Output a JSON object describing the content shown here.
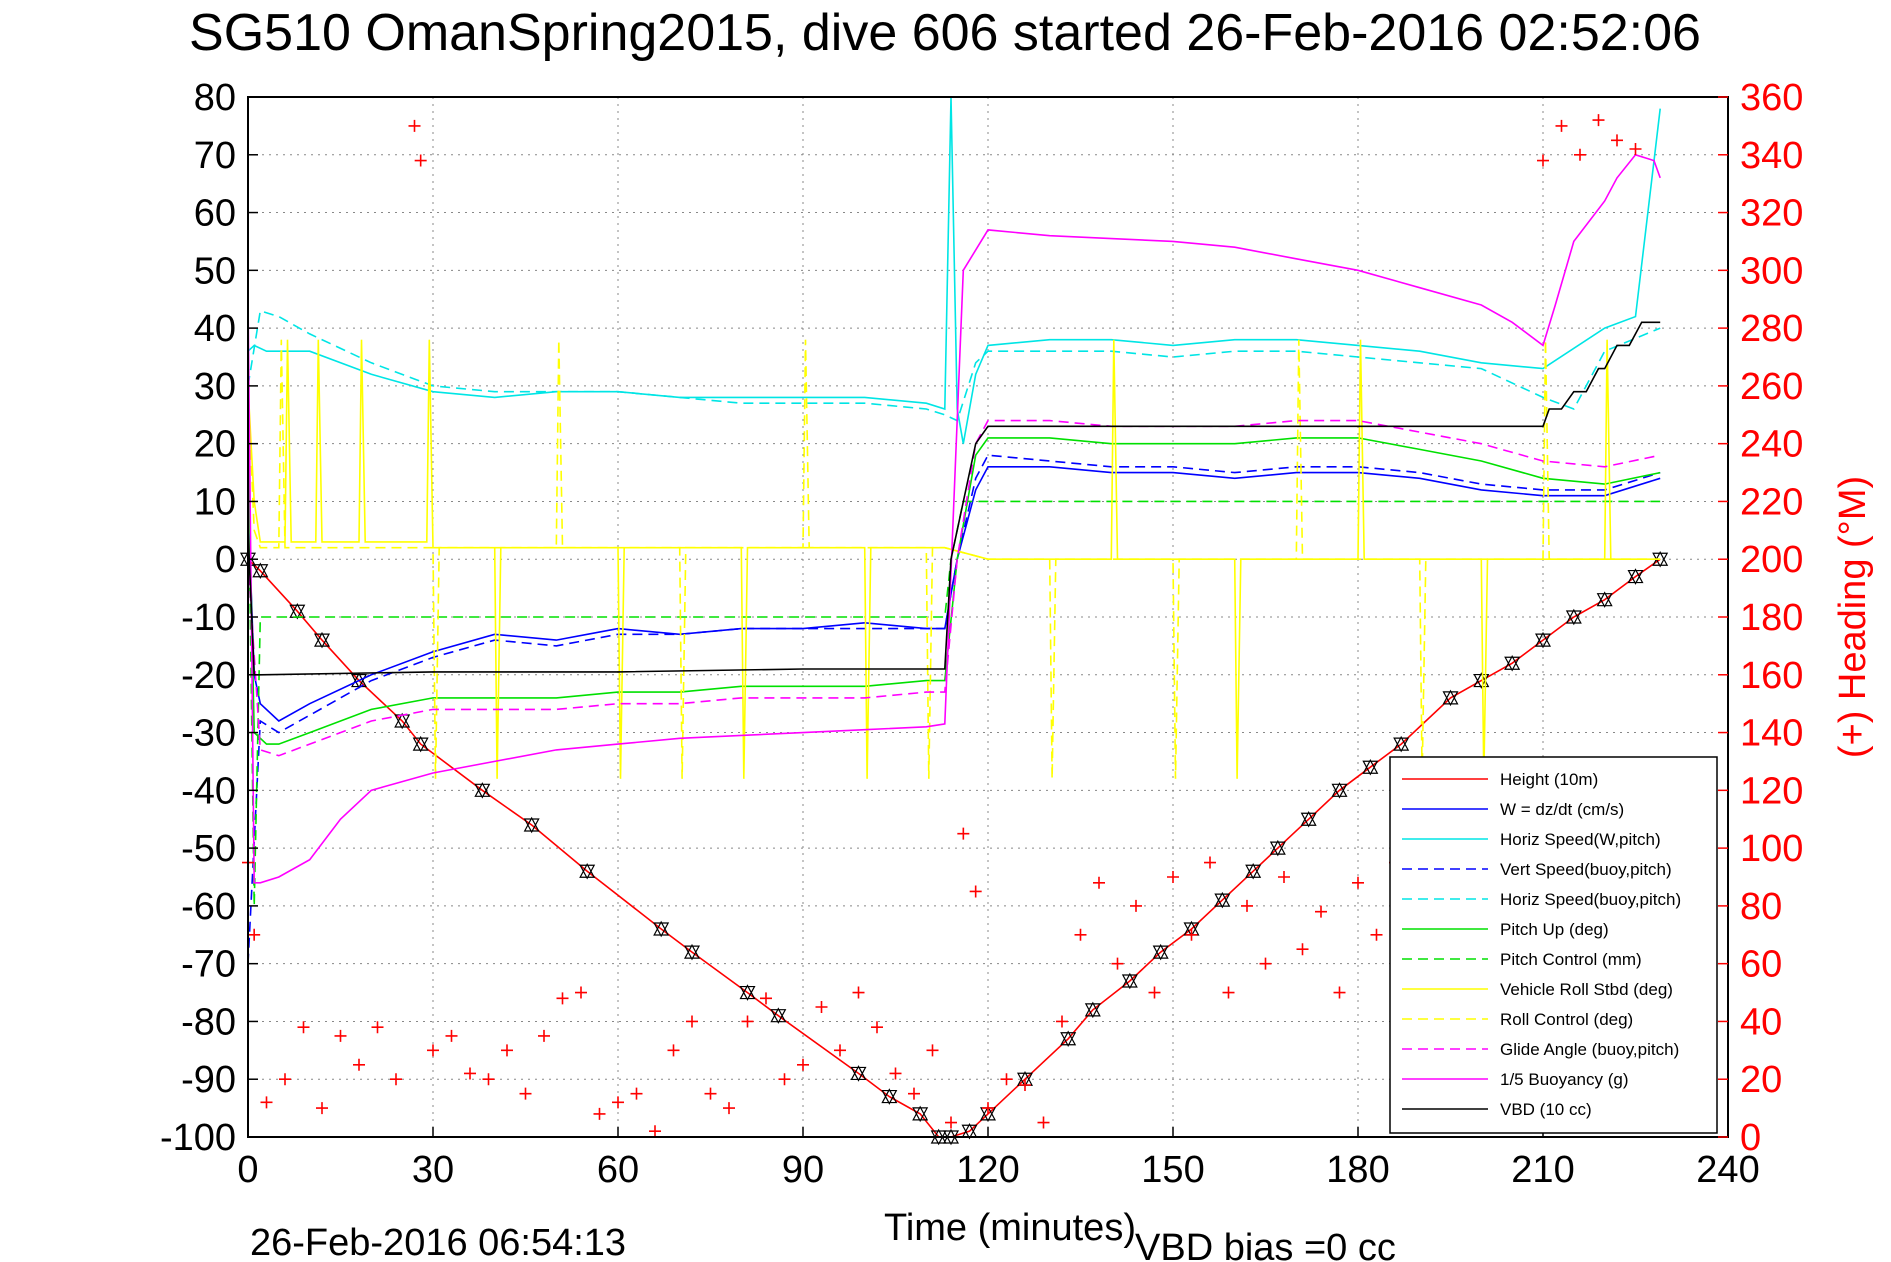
{
  "chart_data": {
    "type": "line",
    "title": "SG510 OmanSpring2015, dive 606 started 26-Feb-2016 02:52:06",
    "xlabel": "Time (minutes)",
    "ylabel_right": "(+) Heading (°M)",
    "xlim": [
      0,
      240
    ],
    "ylim": [
      -100,
      80
    ],
    "ylim_right": [
      0,
      360
    ],
    "x_ticks": [
      "0",
      "30",
      "60",
      "90",
      "120",
      "150",
      "180",
      "210",
      "240"
    ],
    "y_ticks": [
      "80",
      "70",
      "60",
      "50",
      "40",
      "30",
      "20",
      "10",
      "0",
      "-10",
      "-20",
      "-30",
      "-40",
      "-50",
      "-60",
      "-70",
      "-80",
      "-90",
      "-100"
    ],
    "y_right_ticks": [
      "360",
      "340",
      "320",
      "300",
      "280",
      "260",
      "240",
      "220",
      "200",
      "180",
      "160",
      "140",
      "120",
      "100",
      "80",
      "60",
      "40",
      "20",
      "0"
    ],
    "grid": true,
    "legend_position": "lower-right",
    "footer_left": "26-Feb-2016 06:54:13",
    "footer_right": "VBD bias =0 cc",
    "series": [
      {
        "name": "Height (10m)",
        "color": "#ff0000",
        "style": "solid",
        "marker": "triangle",
        "x": [
          0,
          2,
          8,
          12,
          18,
          25,
          28,
          38,
          46,
          55,
          67,
          72,
          81,
          86,
          99,
          104,
          109,
          112,
          114,
          117,
          120,
          126,
          133,
          137,
          143,
          148,
          153,
          158,
          163,
          167,
          172,
          177,
          182,
          187,
          195,
          200,
          205,
          210,
          215,
          220,
          225,
          229
        ],
        "y": [
          0,
          -2,
          -9,
          -14,
          -21,
          -28,
          -32,
          -40,
          -46,
          -54,
          -64,
          -68,
          -75,
          -79,
          -89,
          -93,
          -96,
          -100,
          -100,
          -99,
          -96,
          -90,
          -83,
          -78,
          -73,
          -68,
          -64,
          -59,
          -54,
          -50,
          -45,
          -40,
          -36,
          -32,
          -24,
          -21,
          -18,
          -14,
          -10,
          -7,
          -3,
          0
        ]
      },
      {
        "name": "W = dz/dt (cm/s)",
        "color": "#0000ff",
        "style": "solid",
        "x": [
          0,
          1,
          2,
          5,
          10,
          20,
          30,
          40,
          50,
          60,
          70,
          80,
          90,
          100,
          110,
          113,
          115,
          118,
          120,
          130,
          140,
          150,
          160,
          170,
          180,
          190,
          200,
          210,
          220,
          229
        ],
        "y": [
          10,
          -20,
          -25,
          -28,
          -25,
          -20,
          -16,
          -13,
          -14,
          -12,
          -13,
          -12,
          -12,
          -11,
          -12,
          -12,
          0,
          12,
          16,
          16,
          15,
          15,
          14,
          15,
          15,
          14,
          12,
          11,
          11,
          14
        ]
      },
      {
        "name": "Horiz Speed(W,pitch)",
        "color": "#00e5e5",
        "style": "solid",
        "x": [
          0,
          1,
          3,
          10,
          20,
          30,
          40,
          50,
          60,
          70,
          80,
          90,
          100,
          110,
          113,
          114,
          115,
          116,
          118,
          120,
          130,
          140,
          150,
          160,
          170,
          180,
          190,
          200,
          210,
          220,
          225,
          229
        ],
        "y": [
          36,
          37,
          36,
          36,
          32,
          29,
          28,
          29,
          29,
          28,
          28,
          28,
          28,
          27,
          26,
          80,
          26,
          20,
          32,
          37,
          38,
          38,
          37,
          38,
          38,
          37,
          36,
          34,
          33,
          40,
          42,
          78
        ]
      },
      {
        "name": "Vert Speed(buoy,pitch)",
        "color": "#0000ff",
        "style": "dashed",
        "x": [
          0,
          2,
          5,
          10,
          20,
          30,
          40,
          50,
          60,
          70,
          80,
          90,
          100,
          110,
          113,
          115,
          118,
          120,
          130,
          140,
          150,
          160,
          170,
          180,
          190,
          200,
          210,
          220,
          229
        ],
        "y": [
          -70,
          -28,
          -30,
          -27,
          -21,
          -17,
          -14,
          -15,
          -13,
          -13,
          -12,
          -12,
          -12,
          -12,
          -12,
          0,
          14,
          18,
          17,
          16,
          16,
          15,
          16,
          16,
          15,
          13,
          12,
          12,
          15
        ]
      },
      {
        "name": "Horiz Speed(buoy,pitch)",
        "color": "#00e5e5",
        "style": "dashed",
        "x": [
          0,
          2,
          5,
          10,
          20,
          30,
          40,
          50,
          60,
          70,
          80,
          90,
          100,
          110,
          113,
          115,
          118,
          120,
          130,
          140,
          150,
          160,
          170,
          180,
          190,
          200,
          210,
          215,
          220,
          229
        ],
        "y": [
          30,
          43,
          42,
          39,
          34,
          30,
          29,
          29,
          29,
          28,
          27,
          27,
          27,
          26,
          25,
          24,
          34,
          36,
          36,
          36,
          35,
          36,
          36,
          35,
          34,
          33,
          28,
          26,
          36,
          40
        ]
      },
      {
        "name": "Pitch Up (deg)",
        "color": "#00e000",
        "style": "solid",
        "x": [
          0,
          1,
          3,
          5,
          10,
          20,
          30,
          40,
          50,
          60,
          70,
          80,
          90,
          100,
          110,
          113,
          115,
          118,
          120,
          130,
          140,
          150,
          160,
          170,
          180,
          190,
          200,
          210,
          220,
          229
        ],
        "y": [
          20,
          -30,
          -32,
          -32,
          -30,
          -26,
          -24,
          -24,
          -24,
          -23,
          -23,
          -22,
          -22,
          -22,
          -21,
          -21,
          0,
          18,
          21,
          21,
          20,
          20,
          20,
          21,
          21,
          19,
          17,
          14,
          13,
          15
        ]
      },
      {
        "name": "Pitch Control (mm)",
        "color": "#00e000",
        "style": "dashed",
        "x": [
          0,
          1,
          2,
          3,
          10,
          30,
          60,
          90,
          113,
          114,
          116,
          118,
          120,
          229
        ],
        "y": [
          20,
          -60,
          -10,
          -10,
          -10,
          -10,
          -10,
          -10,
          -10,
          0,
          10,
          10,
          10,
          10
        ]
      },
      {
        "name": "Vehicle Roll Stbd (deg)",
        "color": "#ffff00",
        "style": "solid",
        "x": [
          0,
          1,
          2,
          4,
          6,
          6.4,
          7,
          11,
          11.4,
          12,
          18,
          18.4,
          19,
          29,
          29.4,
          30,
          40,
          40.4,
          41,
          60,
          60.4,
          61,
          80,
          80.4,
          81,
          100,
          100.4,
          101,
          113,
          120,
          140,
          140.4,
          141,
          160,
          160.4,
          161,
          180,
          180.4,
          181,
          200,
          200.4,
          201,
          220,
          220.4,
          221,
          229
        ],
        "y": [
          30,
          10,
          3,
          3,
          3,
          38,
          3,
          3,
          38,
          3,
          3,
          38,
          3,
          3,
          38,
          2,
          2,
          -38,
          2,
          2,
          -38,
          2,
          2,
          -38,
          2,
          2,
          -38,
          2,
          2,
          0,
          0,
          38,
          0,
          0,
          -38,
          0,
          0,
          38,
          0,
          0,
          -38,
          0,
          0,
          38,
          0,
          0
        ]
      },
      {
        "name": "Roll Control (deg)",
        "color": "#ffff00",
        "style": "dashed",
        "x": [
          0,
          1,
          2,
          5,
          5.4,
          6,
          30,
          30.4,
          31,
          50,
          50.4,
          51,
          70,
          70.4,
          71,
          90,
          90.4,
          91,
          110,
          110.4,
          111,
          113,
          120,
          130,
          130.4,
          131,
          150,
          150.4,
          151,
          170,
          170.4,
          171,
          190,
          190.4,
          191,
          210,
          210.4,
          211,
          229
        ],
        "y": [
          30,
          5,
          2,
          2,
          38,
          2,
          2,
          -38,
          2,
          2,
          38,
          2,
          2,
          -38,
          2,
          2,
          38,
          2,
          2,
          -38,
          2,
          2,
          0,
          0,
          -38,
          0,
          0,
          -38,
          0,
          0,
          38,
          0,
          0,
          -38,
          0,
          0,
          38,
          0,
          0
        ]
      },
      {
        "name": "Glide Angle (buoy,pitch)",
        "color": "#ff00ff",
        "style": "dashed",
        "x": [
          0,
          2,
          5,
          10,
          20,
          30,
          40,
          50,
          60,
          70,
          80,
          90,
          100,
          110,
          113,
          115,
          118,
          120,
          130,
          140,
          150,
          160,
          170,
          180,
          190,
          200,
          210,
          220,
          229
        ],
        "y": [
          0,
          -33,
          -34,
          -32,
          -28,
          -26,
          -26,
          -26,
          -25,
          -25,
          -24,
          -24,
          -24,
          -23,
          -23,
          0,
          20,
          24,
          24,
          23,
          23,
          23,
          24,
          24,
          22,
          20,
          17,
          16,
          18
        ]
      },
      {
        "name": "1/5 Buoyancy (g)",
        "color": "#ff00ff",
        "style": "solid",
        "x": [
          0,
          1,
          2,
          5,
          10,
          15,
          20,
          30,
          40,
          50,
          60,
          70,
          80,
          90,
          100,
          110,
          113,
          116,
          120,
          130,
          140,
          150,
          160,
          170,
          180,
          190,
          200,
          205,
          210,
          212,
          215,
          220,
          222,
          225,
          228,
          229
        ],
        "y": [
          45,
          -56,
          -56,
          -55,
          -52,
          -45,
          -40,
          -37,
          -35,
          -33,
          -32,
          -31,
          -30.5,
          -30,
          -29.5,
          -29,
          -28.5,
          50,
          57,
          56,
          55.5,
          55,
          54,
          52,
          50,
          47,
          44,
          41,
          37,
          44,
          55,
          62,
          66,
          70,
          69,
          66
        ]
      },
      {
        "name": "VBD (10 cc)",
        "color": "#000000",
        "style": "solid",
        "x": [
          0,
          1,
          2,
          30,
          60,
          90,
          113,
          114,
          118,
          120,
          150,
          180,
          210,
          211,
          213,
          215,
          217,
          219,
          220,
          222,
          224,
          226,
          229
        ],
        "y": [
          5,
          -20,
          -20,
          -19.5,
          -19.5,
          -19,
          -19,
          0,
          20,
          23,
          23,
          23,
          23,
          26,
          26,
          29,
          29,
          33,
          33,
          37,
          37,
          41,
          41
        ]
      },
      {
        "name": "(+) Heading",
        "color": "#ff0000",
        "style": "markers",
        "marker": "plus",
        "axis": "right",
        "x": [
          0,
          1,
          3,
          6,
          9,
          12,
          15,
          18,
          21,
          24,
          27,
          28,
          30,
          33,
          36,
          39,
          42,
          45,
          48,
          51,
          54,
          57,
          60,
          63,
          66,
          69,
          72,
          75,
          78,
          81,
          84,
          87,
          90,
          93,
          96,
          99,
          102,
          105,
          108,
          111,
          114,
          116,
          118,
          120,
          123,
          126,
          129,
          132,
          135,
          138,
          141,
          144,
          147,
          150,
          153,
          156,
          159,
          162,
          165,
          168,
          171,
          174,
          177,
          180,
          183,
          186,
          189,
          192,
          195,
          198,
          201,
          204,
          207,
          210,
          213,
          216,
          219,
          222,
          225
        ],
        "y": [
          95,
          70,
          12,
          20,
          38,
          10,
          35,
          25,
          38,
          20,
          350,
          338,
          30,
          35,
          22,
          20,
          30,
          15,
          35,
          48,
          50,
          8,
          12,
          15,
          2,
          30,
          40,
          15,
          10,
          40,
          48,
          20,
          25,
          45,
          30,
          50,
          38,
          22,
          15,
          30,
          5,
          105,
          85,
          10,
          20,
          18,
          5,
          40,
          70,
          88,
          60,
          80,
          50,
          90,
          70,
          95,
          50,
          80,
          60,
          90,
          65,
          78,
          50,
          88,
          70,
          95,
          60,
          82,
          55,
          90,
          75,
          60,
          48,
          338,
          350,
          340,
          352,
          345,
          342
        ]
      }
    ]
  }
}
